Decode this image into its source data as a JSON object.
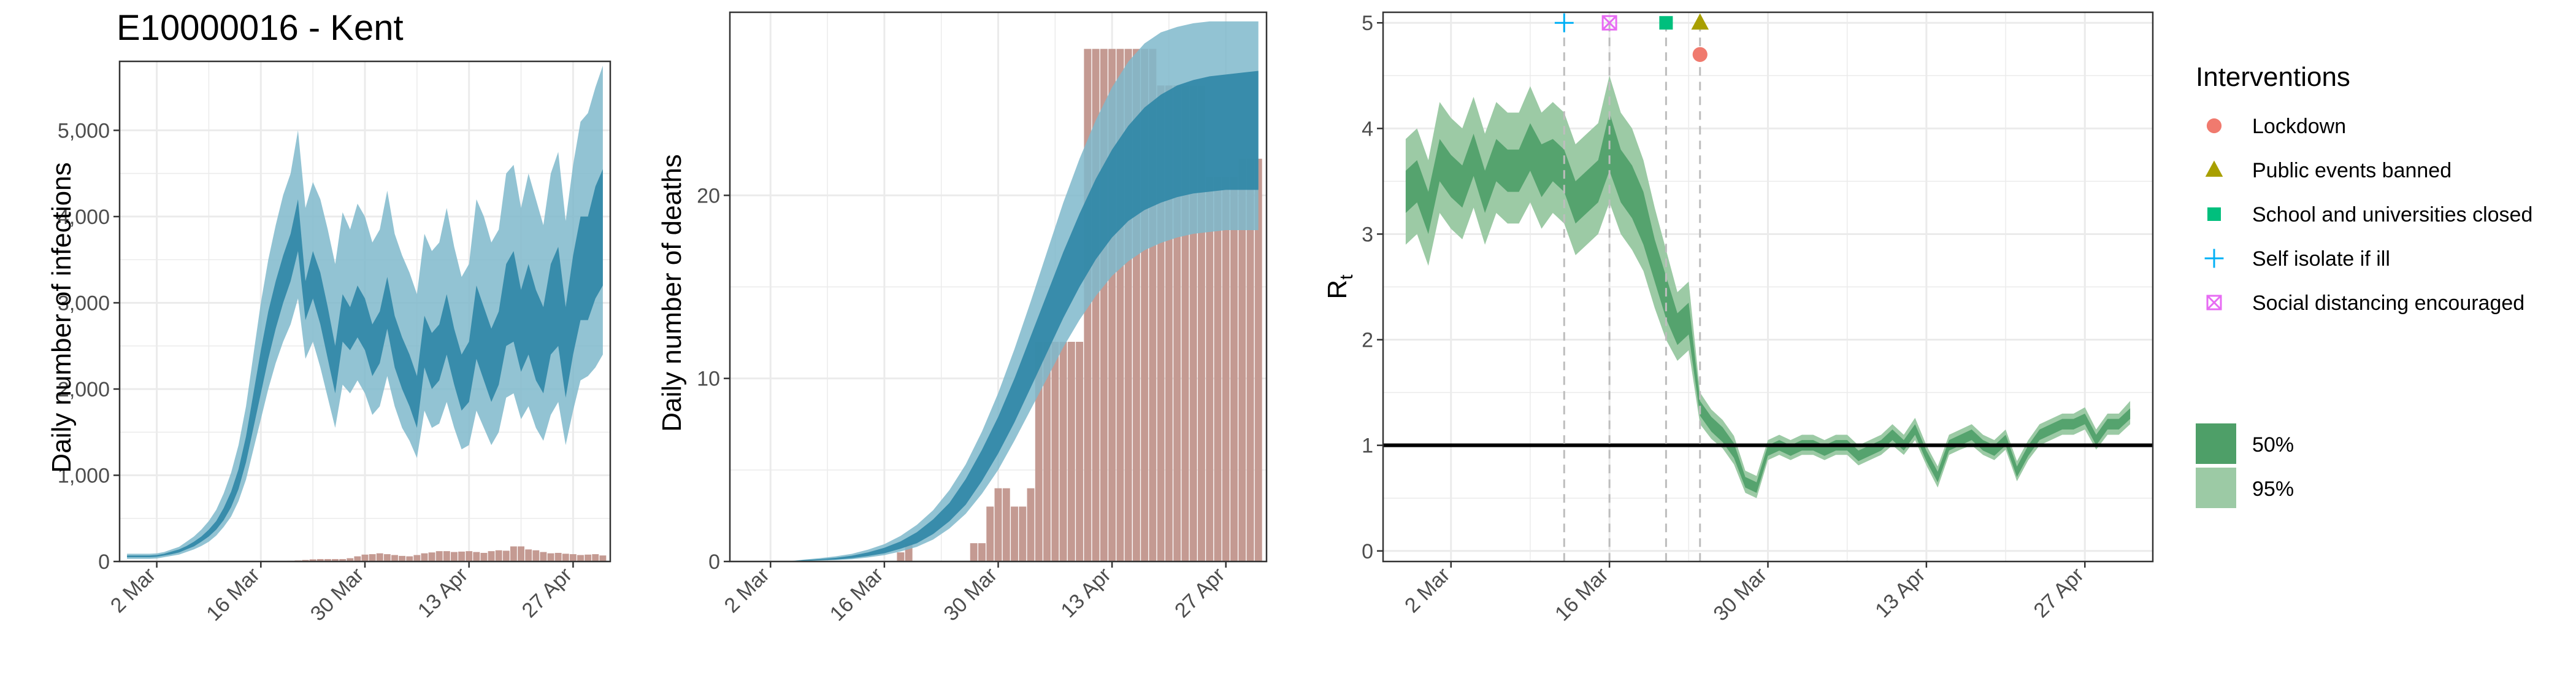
{
  "title": "E10000016 - Kent",
  "colors": {
    "blue_95": "#7fb8cb",
    "blue_50": "#2f86a6",
    "bar": "#c49a92",
    "green_95": "#9ccaa5",
    "green_50": "#4e9f68",
    "grid": "#ebebeb",
    "lockdown": "#f07a6e",
    "public_events": "#a89f00",
    "school": "#00bf7d",
    "self_isolate": "#00b0f6",
    "social": "#e76bf3"
  },
  "chart_data": [
    {
      "id": "infections",
      "type": "area",
      "ylabel": "Daily number of infections",
      "xlabel": "",
      "ylim": [
        0,
        5800
      ],
      "yticks": [
        0,
        1000,
        2000,
        3000,
        4000,
        5000
      ],
      "ytick_labels": [
        "0",
        "1,000",
        "2,000",
        "3,000",
        "4,000",
        "5,000"
      ],
      "xticks": [
        "2 Mar",
        "16 Mar",
        "30 Mar",
        "13 Apr",
        "27 Apr"
      ],
      "xtick_days": [
        2,
        16,
        30,
        44,
        58
      ],
      "x_days": [
        -2,
        -1,
        0,
        1,
        2,
        3,
        4,
        5,
        6,
        7,
        8,
        9,
        10,
        11,
        12,
        13,
        14,
        15,
        16,
        17,
        18,
        19,
        20,
        21,
        22,
        23,
        24,
        25,
        26,
        27,
        28,
        29,
        30,
        31,
        32,
        33,
        34,
        35,
        36,
        37,
        38,
        39,
        40,
        41,
        42,
        43,
        44,
        45,
        46,
        47,
        48,
        49,
        50,
        51,
        52,
        53,
        54,
        55,
        56,
        57,
        58,
        59,
        60,
        61,
        62
      ],
      "mid": [
        60,
        60,
        60,
        60,
        65,
        80,
        100,
        120,
        160,
        200,
        260,
        330,
        420,
        550,
        720,
        950,
        1300,
        1750,
        2200,
        2600,
        2950,
        3250,
        3500,
        3850,
        3000,
        3300,
        3050,
        2650,
        2200,
        2800,
        2700,
        2900,
        2750,
        2450,
        2600,
        3000,
        2550,
        2300,
        2100,
        1850,
        2550,
        2300,
        2400,
        2750,
        2350,
        2050,
        2200,
        2750,
        2500,
        2250,
        2450,
        2950,
        3050,
        2650,
        2900,
        2600,
        2450,
        2900,
        3050,
        2400,
        2950,
        3350,
        3350,
        3650,
        3800
      ],
      "q50_lo": [
        50,
        50,
        50,
        50,
        55,
        70,
        85,
        105,
        140,
        175,
        230,
        290,
        370,
        480,
        630,
        840,
        1150,
        1550,
        1950,
        2350,
        2700,
        3000,
        3250,
        3600,
        2800,
        3050,
        2750,
        2350,
        1950,
        2550,
        2450,
        2600,
        2450,
        2150,
        2300,
        2700,
        2250,
        2000,
        1800,
        1550,
        2250,
        2000,
        2100,
        2400,
        2050,
        1750,
        1850,
        2350,
        2100,
        1850,
        2050,
        2500,
        2550,
        2200,
        2400,
        2100,
        1950,
        2400,
        2500,
        1900,
        2400,
        2800,
        2800,
        3050,
        3200
      ],
      "q50_hi": [
        70,
        70,
        70,
        70,
        75,
        90,
        115,
        140,
        180,
        230,
        290,
        370,
        470,
        620,
        810,
        1070,
        1450,
        1950,
        2450,
        2900,
        3250,
        3550,
        3800,
        4200,
        3250,
        3600,
        3350,
        2950,
        2500,
        3100,
        2950,
        3200,
        3050,
        2750,
        2900,
        3300,
        2850,
        2600,
        2400,
        2150,
        2850,
        2650,
        2750,
        3100,
        2700,
        2400,
        2550,
        3200,
        2950,
        2700,
        2900,
        3450,
        3600,
        3150,
        3450,
        3150,
        2950,
        3450,
        3650,
        2950,
        3550,
        4000,
        4000,
        4350,
        4550
      ],
      "q95_lo": [
        30,
        30,
        30,
        30,
        35,
        50,
        65,
        80,
        110,
        140,
        180,
        230,
        300,
        400,
        520,
        700,
        950,
        1300,
        1650,
        2000,
        2300,
        2550,
        2750,
        3050,
        2350,
        2550,
        2250,
        1900,
        1550,
        2050,
        1950,
        2100,
        1950,
        1700,
        1800,
        2150,
        1800,
        1550,
        1400,
        1200,
        1750,
        1550,
        1600,
        1850,
        1550,
        1300,
        1350,
        1750,
        1550,
        1350,
        1500,
        1900,
        1950,
        1650,
        1800,
        1550,
        1400,
        1700,
        1850,
        1350,
        1750,
        2100,
        2150,
        2250,
        2400
      ],
      "q95_hi": [
        90,
        90,
        90,
        90,
        95,
        110,
        140,
        170,
        230,
        290,
        370,
        470,
        600,
        790,
        1030,
        1350,
        1800,
        2400,
        3000,
        3500,
        3900,
        4250,
        4500,
        5000,
        4100,
        4400,
        4200,
        3850,
        3450,
        4050,
        3850,
        4150,
        4000,
        3700,
        3850,
        4300,
        3800,
        3550,
        3350,
        3100,
        3800,
        3600,
        3700,
        4100,
        3650,
        3300,
        3450,
        4200,
        4000,
        3700,
        3850,
        4500,
        4600,
        4100,
        4500,
        4200,
        3900,
        4500,
        4750,
        3950,
        4600,
        5100,
        5200,
        5500,
        5750
      ],
      "bars_x_days": [
        20,
        21,
        22,
        23,
        24,
        25,
        26,
        27,
        28,
        29,
        30,
        31,
        32,
        33,
        34,
        35,
        36,
        37,
        38,
        39,
        40,
        41,
        42,
        43,
        44,
        45,
        46,
        47,
        48,
        49,
        50,
        51,
        52,
        53,
        54,
        55,
        56,
        57,
        58,
        59,
        60,
        61,
        62
      ],
      "bars": [
        8,
        12,
        18,
        25,
        28,
        28,
        28,
        28,
        38,
        60,
        80,
        85,
        95,
        85,
        75,
        65,
        60,
        75,
        95,
        105,
        120,
        120,
        110,
        115,
        120,
        110,
        100,
        120,
        130,
        125,
        175,
        175,
        140,
        130,
        110,
        95,
        100,
        90,
        85,
        75,
        80,
        85,
        70
      ]
    },
    {
      "id": "deaths",
      "type": "area",
      "ylabel": "Daily number of deaths",
      "xlabel": "",
      "ylim": [
        0,
        30
      ],
      "yticks": [
        0,
        10,
        20
      ],
      "ytick_labels": [
        "0",
        "10",
        "20"
      ],
      "xticks": [
        "2 Mar",
        "16 Mar",
        "30 Mar",
        "13 Apr",
        "27 Apr"
      ],
      "xtick_days": [
        2,
        16,
        30,
        44,
        58
      ],
      "x_days": [
        0,
        2,
        4,
        6,
        8,
        10,
        12,
        14,
        16,
        18,
        20,
        22,
        24,
        26,
        28,
        30,
        32,
        34,
        36,
        38,
        40,
        42,
        44,
        46,
        48,
        50,
        52,
        54,
        56,
        58,
        60,
        62
      ],
      "mid": [
        0,
        0,
        0,
        0.05,
        0.1,
        0.15,
        0.25,
        0.4,
        0.6,
        0.9,
        1.3,
        1.9,
        2.7,
        3.8,
        5.2,
        6.9,
        8.8,
        10.9,
        13.0,
        15.1,
        17.0,
        18.7,
        20.1,
        21.2,
        22.0,
        22.6,
        23.0,
        23.3,
        23.5,
        23.6,
        23.7,
        23.8
      ],
      "q50_lo": [
        0,
        0,
        0,
        0.03,
        0.07,
        0.1,
        0.18,
        0.3,
        0.45,
        0.7,
        1.0,
        1.5,
        2.2,
        3.1,
        4.4,
        5.9,
        7.6,
        9.5,
        11.4,
        13.3,
        15.0,
        16.5,
        17.7,
        18.6,
        19.2,
        19.6,
        19.9,
        20.1,
        20.2,
        20.3,
        20.3,
        20.3
      ],
      "q50_hi": [
        0,
        0,
        0,
        0.07,
        0.13,
        0.2,
        0.32,
        0.5,
        0.75,
        1.1,
        1.6,
        2.3,
        3.2,
        4.5,
        6.1,
        7.9,
        10.0,
        12.3,
        14.6,
        16.9,
        19.0,
        20.9,
        22.5,
        23.8,
        24.8,
        25.5,
        26.0,
        26.3,
        26.5,
        26.6,
        26.7,
        26.8
      ],
      "q95_lo": [
        0,
        0,
        0,
        0.02,
        0.05,
        0.08,
        0.12,
        0.22,
        0.35,
        0.55,
        0.8,
        1.2,
        1.8,
        2.6,
        3.7,
        5.0,
        6.6,
        8.3,
        10.0,
        11.7,
        13.2,
        14.5,
        15.6,
        16.4,
        17.0,
        17.4,
        17.7,
        17.9,
        18.0,
        18.1,
        18.1,
        18.1
      ],
      "q95_hi": [
        0,
        0,
        0,
        0.1,
        0.18,
        0.28,
        0.42,
        0.65,
        0.95,
        1.4,
        2.0,
        2.8,
        3.9,
        5.3,
        7.1,
        9.2,
        11.6,
        14.2,
        16.9,
        19.6,
        22.0,
        24.1,
        25.9,
        27.3,
        28.3,
        28.9,
        29.2,
        29.4,
        29.5,
        29.5,
        29.5,
        29.5
      ],
      "bars_x_days": [
        18,
        19,
        20,
        21,
        22,
        23,
        24,
        25,
        26,
        27,
        28,
        29,
        30,
        31,
        32,
        33,
        34,
        35,
        36,
        37,
        38,
        39,
        40,
        41,
        42,
        43,
        44,
        45,
        46,
        47,
        48,
        49,
        50,
        51,
        52,
        53,
        54,
        55,
        56,
        57,
        58,
        59,
        60,
        61,
        62
      ],
      "bars": [
        0.5,
        1,
        0,
        0,
        0,
        0,
        0,
        0,
        0,
        1,
        1,
        3,
        4,
        4,
        3,
        3,
        4,
        12,
        12,
        12,
        12,
        12,
        12,
        28,
        28,
        28,
        28,
        28,
        28,
        28,
        28,
        28,
        26,
        26,
        26,
        26,
        26,
        26,
        21,
        21,
        21,
        21,
        22,
        22,
        22
      ]
    },
    {
      "id": "rt",
      "type": "area",
      "ylabel": "R",
      "ylabel_sub": "t",
      "xlabel": "",
      "ylim": [
        -0.1,
        5.1
      ],
      "yticks": [
        0,
        1,
        2,
        3,
        4,
        5
      ],
      "ytick_labels": [
        "0",
        "1",
        "2",
        "3",
        "4",
        "5"
      ],
      "xticks": [
        "2 Mar",
        "16 Mar",
        "30 Mar",
        "13 Apr",
        "27 Apr"
      ],
      "xtick_days": [
        2,
        16,
        30,
        44,
        58
      ],
      "x_days": [
        -2,
        -1,
        0,
        1,
        2,
        3,
        4,
        5,
        6,
        7,
        8,
        9,
        10,
        11,
        12,
        13,
        14,
        15,
        16,
        17,
        18,
        19,
        20,
        21,
        22,
        23,
        24,
        25,
        26,
        27,
        28,
        29,
        30,
        31,
        32,
        33,
        34,
        35,
        36,
        37,
        38,
        39,
        40,
        41,
        42,
        43,
        44,
        45,
        46,
        47,
        48,
        49,
        50,
        51,
        52,
        53,
        54,
        55,
        56,
        57,
        58,
        59,
        60,
        61,
        62
      ],
      "mid": [
        3.4,
        3.5,
        3.2,
        3.7,
        3.55,
        3.45,
        3.75,
        3.4,
        3.7,
        3.6,
        3.6,
        3.85,
        3.6,
        3.7,
        3.6,
        3.3,
        3.4,
        3.5,
        3.9,
        3.55,
        3.4,
        3.15,
        2.75,
        2.4,
        2.1,
        2.2,
        1.35,
        1.2,
        1.1,
        0.95,
        0.65,
        0.6,
        0.95,
        1.0,
        0.95,
        1.0,
        1.0,
        0.95,
        1.0,
        1.0,
        0.9,
        0.95,
        1.0,
        1.1,
        1.0,
        1.15,
        0.9,
        0.7,
        1.0,
        1.05,
        1.1,
        1.0,
        0.95,
        1.05,
        0.75,
        0.95,
        1.1,
        1.15,
        1.2,
        1.2,
        1.25,
        1.05,
        1.2,
        1.2,
        1.3
      ],
      "q50_lo": [
        3.2,
        3.3,
        3.0,
        3.5,
        3.35,
        3.25,
        3.55,
        3.2,
        3.5,
        3.4,
        3.4,
        3.6,
        3.35,
        3.5,
        3.4,
        3.1,
        3.2,
        3.3,
        3.6,
        3.3,
        3.15,
        2.9,
        2.55,
        2.2,
        1.95,
        2.05,
        1.28,
        1.13,
        1.03,
        0.88,
        0.6,
        0.55,
        0.9,
        0.95,
        0.9,
        0.95,
        0.95,
        0.9,
        0.95,
        0.95,
        0.85,
        0.9,
        0.95,
        1.05,
        0.95,
        1.1,
        0.85,
        0.65,
        0.95,
        1.0,
        1.05,
        0.95,
        0.9,
        1.0,
        0.7,
        0.9,
        1.05,
        1.1,
        1.15,
        1.15,
        1.2,
        1.0,
        1.15,
        1.15,
        1.25
      ],
      "q50_hi": [
        3.6,
        3.7,
        3.4,
        3.9,
        3.75,
        3.65,
        3.95,
        3.6,
        3.9,
        3.8,
        3.8,
        4.05,
        3.85,
        3.9,
        3.8,
        3.5,
        3.6,
        3.7,
        4.15,
        3.8,
        3.65,
        3.4,
        2.95,
        2.6,
        2.25,
        2.35,
        1.42,
        1.27,
        1.17,
        1.02,
        0.7,
        0.65,
        1.0,
        1.05,
        1.0,
        1.05,
        1.05,
        1.0,
        1.05,
        1.05,
        0.95,
        1.0,
        1.05,
        1.15,
        1.05,
        1.2,
        0.95,
        0.75,
        1.05,
        1.1,
        1.15,
        1.05,
        1.0,
        1.1,
        0.8,
        1.0,
        1.15,
        1.2,
        1.25,
        1.25,
        1.3,
        1.1,
        1.25,
        1.25,
        1.35
      ],
      "q95_lo": [
        2.9,
        3.0,
        2.7,
        3.2,
        3.05,
        2.95,
        3.25,
        2.9,
        3.2,
        3.1,
        3.1,
        3.3,
        3.05,
        3.2,
        3.1,
        2.8,
        2.9,
        3.0,
        3.3,
        3.0,
        2.85,
        2.65,
        2.3,
        2.0,
        1.8,
        1.9,
        1.2,
        1.06,
        0.97,
        0.82,
        0.55,
        0.5,
        0.86,
        0.91,
        0.86,
        0.91,
        0.91,
        0.86,
        0.91,
        0.91,
        0.81,
        0.86,
        0.91,
        1.0,
        0.91,
        1.05,
        0.81,
        0.6,
        0.91,
        0.96,
        1.0,
        0.91,
        0.86,
        0.96,
        0.66,
        0.86,
        1.0,
        1.05,
        1.1,
        1.1,
        1.15,
        0.96,
        1.1,
        1.1,
        1.2
      ],
      "q95_hi": [
        3.9,
        4.0,
        3.7,
        4.25,
        4.1,
        4.0,
        4.3,
        3.95,
        4.25,
        4.15,
        4.15,
        4.4,
        4.15,
        4.25,
        4.15,
        3.85,
        3.95,
        4.05,
        4.5,
        4.15,
        4.0,
        3.7,
        3.25,
        2.85,
        2.45,
        2.55,
        1.5,
        1.34,
        1.24,
        1.09,
        0.76,
        0.71,
        1.05,
        1.1,
        1.05,
        1.1,
        1.1,
        1.05,
        1.1,
        1.1,
        1.0,
        1.05,
        1.1,
        1.2,
        1.1,
        1.26,
        1.0,
        0.8,
        1.1,
        1.15,
        1.2,
        1.1,
        1.05,
        1.15,
        0.85,
        1.05,
        1.2,
        1.25,
        1.3,
        1.3,
        1.36,
        1.15,
        1.3,
        1.3,
        1.42
      ],
      "hline": 1,
      "interventions": [
        {
          "name": "Self isolate if ill",
          "day": 12,
          "y": 5.0,
          "shape": "plus",
          "color_key": "self_isolate"
        },
        {
          "name": "Social distancing encouraged",
          "day": 16,
          "y": 5.0,
          "shape": "boxx",
          "color_key": "social"
        },
        {
          "name": "School and universities closed",
          "day": 21,
          "y": 5.0,
          "shape": "square",
          "color_key": "school"
        },
        {
          "name": "Public events banned",
          "day": 24,
          "y": 5.0,
          "shape": "triangle",
          "color_key": "public_events"
        },
        {
          "name": "Lockdown",
          "day": 24,
          "y": 4.7,
          "shape": "circle",
          "color_key": "lockdown"
        }
      ]
    }
  ],
  "legend": {
    "title": "Interventions",
    "items": [
      {
        "label": "Lockdown",
        "shape": "circle",
        "color_key": "lockdown"
      },
      {
        "label": "Public events banned",
        "shape": "triangle",
        "color_key": "public_events"
      },
      {
        "label": "School and universities closed",
        "shape": "square",
        "color_key": "school"
      },
      {
        "label": "Self isolate if ill",
        "shape": "plus",
        "color_key": "self_isolate"
      },
      {
        "label": "Social distancing encouraged",
        "shape": "boxx",
        "color_key": "social"
      }
    ],
    "bands": [
      {
        "label": "50%",
        "color_key": "green_50"
      },
      {
        "label": "95%",
        "color_key": "green_95"
      }
    ]
  }
}
